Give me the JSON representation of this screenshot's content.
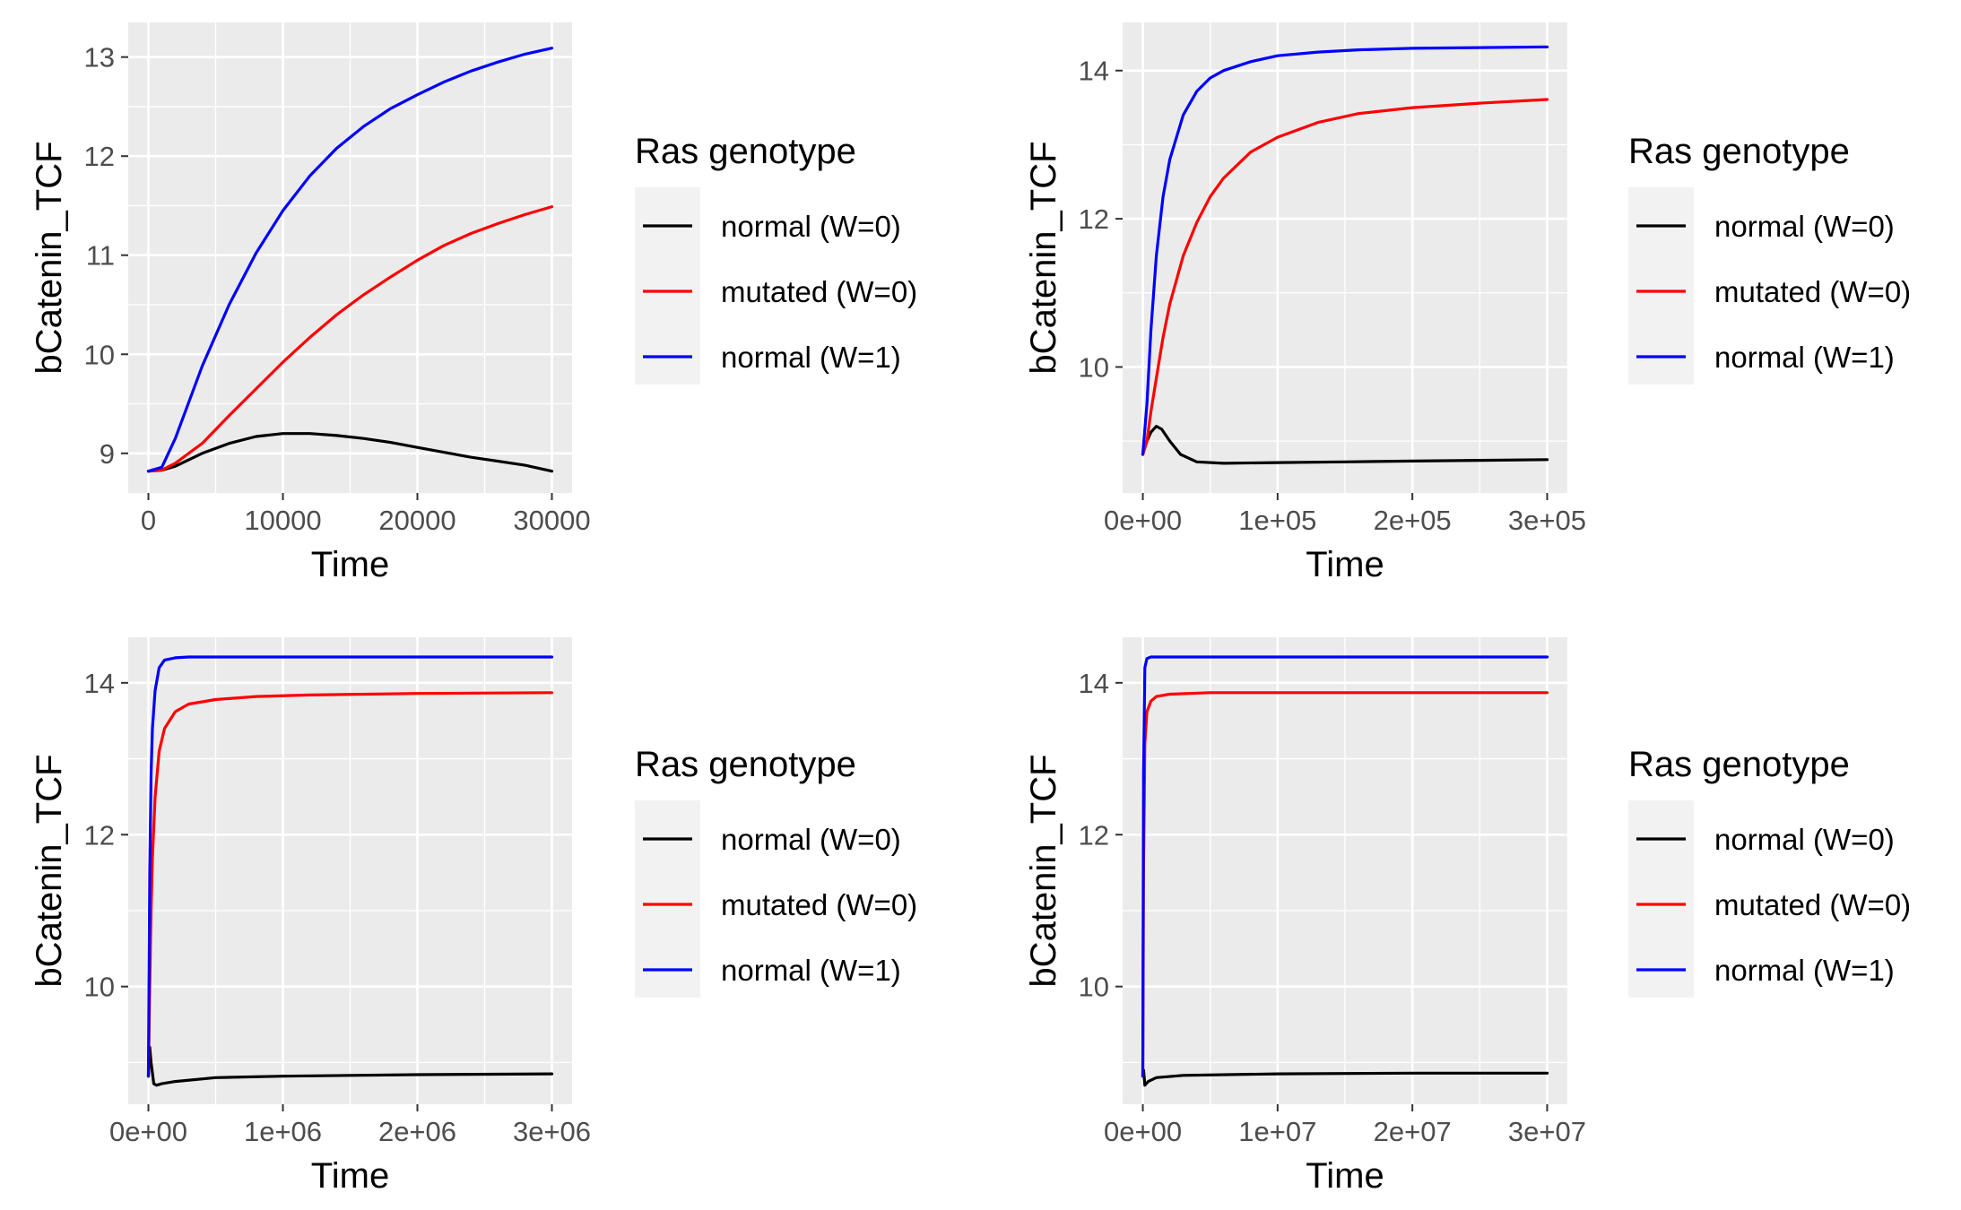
{
  "chart_data": [
    {
      "type": "line",
      "xlabel": "Time",
      "ylabel": "bCatenin_TCF",
      "xlim": [
        -1500,
        31500
      ],
      "ylim": [
        8.6,
        13.35
      ],
      "xticks": [
        0,
        10000,
        20000,
        30000
      ],
      "xtick_labels": [
        "0",
        "10000",
        "20000",
        "30000"
      ],
      "yticks": [
        9,
        10,
        11,
        12,
        13
      ],
      "ytick_labels": [
        "9",
        "10",
        "11",
        "12",
        "13"
      ],
      "grid": true,
      "legend_position": "right",
      "legend_title": "Ras genotype",
      "series": [
        {
          "name": "normal (W=0)",
          "color": "#000000",
          "x": [
            0,
            1000,
            2000,
            4000,
            6000,
            8000,
            10000,
            12000,
            14000,
            16000,
            18000,
            20000,
            22000,
            24000,
            26000,
            28000,
            30000
          ],
          "y": [
            8.82,
            8.83,
            8.87,
            9.0,
            9.1,
            9.17,
            9.2,
            9.2,
            9.18,
            9.15,
            9.11,
            9.06,
            9.01,
            8.96,
            8.92,
            8.88,
            8.82
          ]
        },
        {
          "name": "mutated (W=0)",
          "color": "#ff0000",
          "x": [
            0,
            1000,
            2000,
            4000,
            6000,
            8000,
            10000,
            12000,
            14000,
            16000,
            18000,
            20000,
            22000,
            24000,
            26000,
            28000,
            30000
          ],
          "y": [
            8.82,
            8.83,
            8.9,
            9.1,
            9.38,
            9.65,
            9.92,
            10.17,
            10.4,
            10.6,
            10.78,
            10.95,
            11.1,
            11.22,
            11.32,
            11.41,
            11.49
          ]
        },
        {
          "name": "normal (W=1)",
          "color": "#0000ff",
          "x": [
            0,
            1000,
            2000,
            4000,
            6000,
            8000,
            10000,
            12000,
            14000,
            16000,
            18000,
            20000,
            22000,
            24000,
            26000,
            28000,
            30000
          ],
          "y": [
            8.82,
            8.86,
            9.15,
            9.88,
            10.5,
            11.02,
            11.45,
            11.8,
            12.08,
            12.3,
            12.48,
            12.62,
            12.75,
            12.86,
            12.95,
            13.03,
            13.09
          ]
        }
      ]
    },
    {
      "type": "line",
      "xlabel": "Time",
      "ylabel": "bCatenin_TCF",
      "xlim": [
        -15000,
        315000
      ],
      "ylim": [
        8.3,
        14.65
      ],
      "xticks": [
        0,
        100000,
        200000,
        300000
      ],
      "xtick_labels": [
        "0e+00",
        "1e+05",
        "2e+05",
        "3e+05"
      ],
      "yticks": [
        10,
        12,
        14
      ],
      "ytick_labels": [
        "10",
        "12",
        "14"
      ],
      "grid": true,
      "legend_position": "right",
      "legend_title": "Ras genotype",
      "series": [
        {
          "name": "normal (W=0)",
          "color": "#000000",
          "x": [
            0,
            3000,
            6000,
            10000,
            14000,
            20000,
            28000,
            40000,
            60000,
            100000,
            150000,
            200000,
            250000,
            300000
          ],
          "y": [
            8.82,
            9.0,
            9.12,
            9.2,
            9.16,
            9.0,
            8.82,
            8.72,
            8.7,
            8.71,
            8.72,
            8.73,
            8.74,
            8.75
          ]
        },
        {
          "name": "mutated (W=0)",
          "color": "#ff0000",
          "x": [
            0,
            3000,
            6000,
            10000,
            15000,
            20000,
            30000,
            40000,
            50000,
            60000,
            80000,
            100000,
            130000,
            160000,
            200000,
            250000,
            300000
          ],
          "y": [
            8.82,
            9.0,
            9.4,
            9.85,
            10.4,
            10.85,
            11.5,
            11.95,
            12.3,
            12.55,
            12.9,
            13.1,
            13.3,
            13.42,
            13.5,
            13.56,
            13.61
          ]
        },
        {
          "name": "normal (W=1)",
          "color": "#0000ff",
          "x": [
            0,
            3000,
            6000,
            10000,
            15000,
            20000,
            30000,
            40000,
            50000,
            60000,
            80000,
            100000,
            130000,
            160000,
            200000,
            250000,
            300000
          ],
          "y": [
            8.82,
            9.5,
            10.5,
            11.5,
            12.3,
            12.8,
            13.4,
            13.72,
            13.9,
            14.0,
            14.12,
            14.2,
            14.25,
            14.28,
            14.3,
            14.31,
            14.32
          ]
        }
      ]
    },
    {
      "type": "line",
      "xlabel": "Time",
      "ylabel": "bCatenin_TCF",
      "xlim": [
        -150000,
        3150000
      ],
      "ylim": [
        8.45,
        14.6
      ],
      "xticks": [
        0,
        1000000,
        2000000,
        3000000
      ],
      "xtick_labels": [
        "0e+00",
        "1e+06",
        "2e+06",
        "3e+06"
      ],
      "yticks": [
        10,
        12,
        14
      ],
      "ytick_labels": [
        "10",
        "12",
        "14"
      ],
      "grid": true,
      "legend_position": "right",
      "legend_title": "Ras genotype",
      "series": [
        {
          "name": "normal (W=0)",
          "color": "#000000",
          "x": [
            0,
            10000,
            20000,
            40000,
            60000,
            100000,
            200000,
            500000,
            1000000,
            2000000,
            3000000
          ],
          "y": [
            8.82,
            9.2,
            9.0,
            8.72,
            8.7,
            8.72,
            8.75,
            8.8,
            8.82,
            8.84,
            8.85
          ]
        },
        {
          "name": "mutated (W=0)",
          "color": "#ff0000",
          "x": [
            0,
            10000,
            20000,
            30000,
            50000,
            80000,
            120000,
            200000,
            300000,
            500000,
            800000,
            1200000,
            2000000,
            3000000
          ],
          "y": [
            8.82,
            10.0,
            11.0,
            11.7,
            12.5,
            13.1,
            13.4,
            13.62,
            13.72,
            13.78,
            13.82,
            13.84,
            13.86,
            13.87
          ]
        },
        {
          "name": "normal (W=1)",
          "color": "#0000ff",
          "x": [
            0,
            10000,
            20000,
            30000,
            50000,
            80000,
            120000,
            200000,
            300000,
            500000,
            1000000,
            2000000,
            3000000
          ],
          "y": [
            8.82,
            11.5,
            12.8,
            13.4,
            13.9,
            14.2,
            14.3,
            14.33,
            14.34,
            14.34,
            14.34,
            14.34,
            14.34
          ]
        }
      ]
    },
    {
      "type": "line",
      "xlabel": "Time",
      "ylabel": "bCatenin_TCF",
      "xlim": [
        -1500000,
        31500000
      ],
      "ylim": [
        8.45,
        14.6
      ],
      "xticks": [
        0,
        10000000,
        20000000,
        30000000
      ],
      "xtick_labels": [
        "0e+00",
        "1e+07",
        "2e+07",
        "3e+07"
      ],
      "yticks": [
        10,
        12,
        14
      ],
      "ytick_labels": [
        "10",
        "12",
        "14"
      ],
      "grid": true,
      "legend_position": "right",
      "legend_title": "Ras genotype",
      "series": [
        {
          "name": "normal (W=0)",
          "color": "#000000",
          "x": [
            0,
            60000,
            150000,
            400000,
            1000000,
            3000000,
            10000000,
            20000000,
            30000000
          ],
          "y": [
            8.82,
            8.9,
            8.7,
            8.75,
            8.8,
            8.83,
            8.85,
            8.86,
            8.86
          ]
        },
        {
          "name": "mutated (W=0)",
          "color": "#ff0000",
          "x": [
            0,
            50000,
            150000,
            300000,
            600000,
            1000000,
            2000000,
            5000000,
            10000000,
            20000000,
            30000000
          ],
          "y": [
            8.82,
            11.5,
            13.2,
            13.62,
            13.76,
            13.82,
            13.85,
            13.87,
            13.87,
            13.87,
            13.87
          ]
        },
        {
          "name": "normal (W=1)",
          "color": "#0000ff",
          "x": [
            0,
            50000,
            150000,
            300000,
            600000,
            1000000,
            30000000
          ],
          "y": [
            8.82,
            12.8,
            14.2,
            14.32,
            14.34,
            14.34,
            14.34
          ]
        }
      ]
    }
  ]
}
